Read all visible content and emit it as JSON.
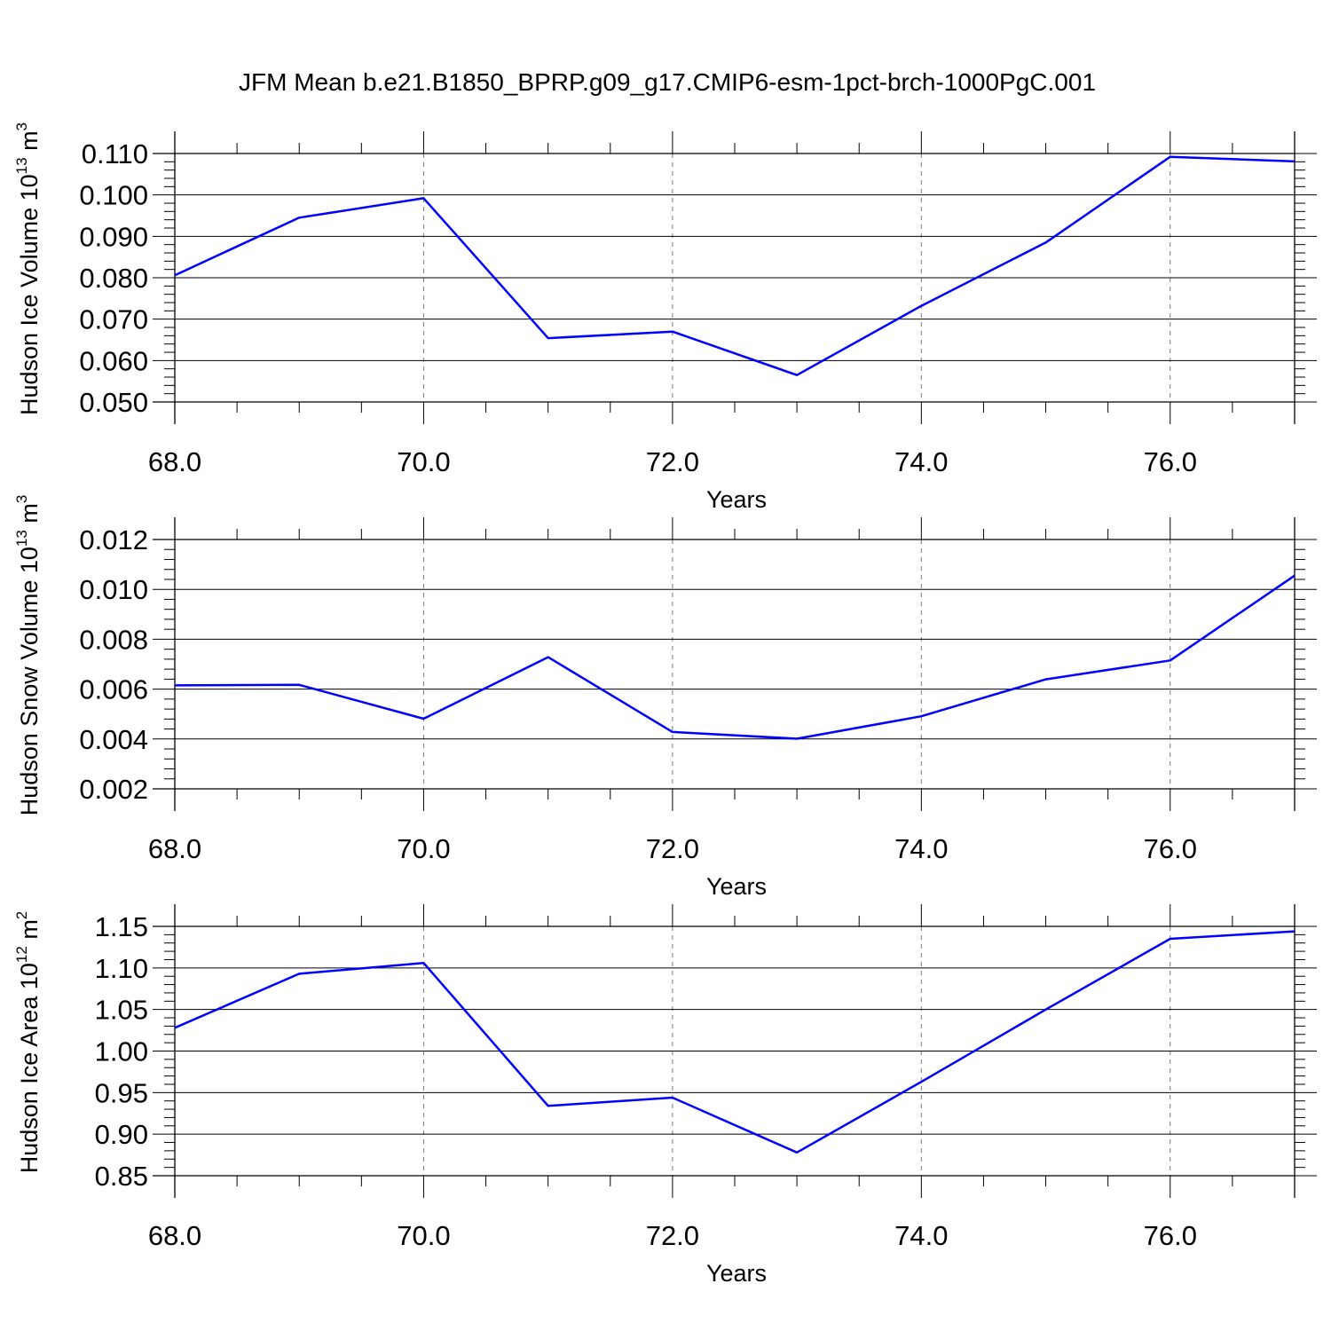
{
  "title": "JFM Mean b.e21.B1850_BPRP.g09_g17.CMIP6-esm-1pct-brch-1000PgC.001",
  "line_color": "#0000ff",
  "chart_data": [
    {
      "type": "line",
      "ylabel": "Hudson Ice Volume 10",
      "ylabel_exp": "13",
      "ylabel_unit": " m",
      "ylabel_unit_exp": "3",
      "xlabel": "Years",
      "xlim": [
        68,
        77
      ],
      "ylim": [
        0.05,
        0.11
      ],
      "x_ticks": [
        68,
        70,
        72,
        74,
        76
      ],
      "x_tick_labels": [
        "68.0",
        "70.0",
        "72.0",
        "74.0",
        "76.0"
      ],
      "y_ticks": [
        0.05,
        0.06,
        0.07,
        0.08,
        0.09,
        0.1,
        0.11
      ],
      "y_tick_labels": [
        "0.050",
        "0.060",
        "0.070",
        "0.080",
        "0.090",
        "0.100",
        "0.110"
      ],
      "y_minor_step": 0.002,
      "grid": "vertical dashed at major x ticks",
      "series": [
        {
          "x": [
            68,
            69,
            70,
            71,
            72,
            73,
            74,
            75,
            76,
            77
          ],
          "y": [
            0.0806,
            0.0945,
            0.0992,
            0.0654,
            0.067,
            0.0565,
            0.0732,
            0.0885,
            0.1092,
            0.1081
          ]
        }
      ]
    },
    {
      "type": "line",
      "ylabel": "Hudson Snow Volume 10",
      "ylabel_exp": "13",
      "ylabel_unit": " m",
      "ylabel_unit_exp": "3",
      "xlabel": "Years",
      "xlim": [
        68,
        77
      ],
      "ylim": [
        0.002,
        0.012
      ],
      "x_ticks": [
        68,
        70,
        72,
        74,
        76
      ],
      "x_tick_labels": [
        "68.0",
        "70.0",
        "72.0",
        "74.0",
        "76.0"
      ],
      "y_ticks": [
        0.002,
        0.004,
        0.006,
        0.008,
        0.01,
        0.012
      ],
      "y_tick_labels": [
        "0.002",
        "0.004",
        "0.006",
        "0.008",
        "0.010",
        "0.012"
      ],
      "y_minor_step": 0.0004,
      "grid": "vertical dashed at major x ticks",
      "series": [
        {
          "x": [
            68,
            69,
            70,
            71,
            72,
            73,
            74,
            75,
            76,
            77
          ],
          "y": [
            0.00615,
            0.00617,
            0.00481,
            0.00728,
            0.00428,
            0.00401,
            0.00491,
            0.00639,
            0.00715,
            0.01055
          ]
        }
      ]
    },
    {
      "type": "line",
      "ylabel": "Hudson Ice Area 10",
      "ylabel_exp": "12",
      "ylabel_unit": " m",
      "ylabel_unit_exp": "2",
      "xlabel": "Years",
      "xlim": [
        68,
        77
      ],
      "ylim": [
        0.85,
        1.15
      ],
      "x_ticks": [
        68,
        70,
        72,
        74,
        76
      ],
      "x_tick_labels": [
        "68.0",
        "70.0",
        "72.0",
        "74.0",
        "76.0"
      ],
      "y_ticks": [
        0.85,
        0.9,
        0.95,
        1.0,
        1.05,
        1.1,
        1.15
      ],
      "y_tick_labels": [
        "0.85",
        "0.90",
        "0.95",
        "1.00",
        "1.05",
        "1.10",
        "1.15"
      ],
      "y_minor_step": 0.01,
      "grid": "vertical dashed at major x ticks",
      "series": [
        {
          "x": [
            68,
            69,
            70,
            71,
            72,
            73,
            74,
            75,
            76,
            77
          ],
          "y": [
            1.028,
            1.093,
            1.106,
            0.934,
            0.944,
            0.878,
            0.963,
            1.05,
            1.135,
            1.144
          ]
        }
      ]
    }
  ]
}
